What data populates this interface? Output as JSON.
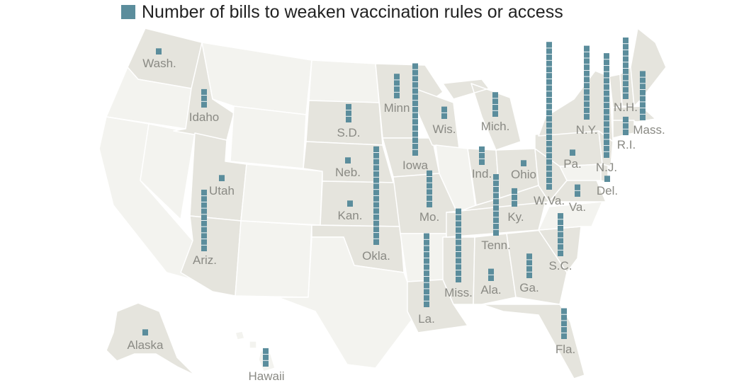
{
  "legend": {
    "label": "Number of bills to weaken vaccination rules or access"
  },
  "colors": {
    "bar": "#5b8d9c",
    "cell_gap": "#ffffff",
    "land_light": "#f3f3ef",
    "land_shaded": "#e5e4dd",
    "border": "#ffffff",
    "label": "#8a8a84"
  },
  "states": [
    {
      "id": "wa",
      "label": "Wash.",
      "count": 1
    },
    {
      "id": "id",
      "label": "Idaho",
      "count": 3
    },
    {
      "id": "mn",
      "label": "Minn",
      "count": 4
    },
    {
      "id": "ia",
      "label": "Iowa",
      "count": 15
    },
    {
      "id": "sd",
      "label": "S.D.",
      "count": 3
    },
    {
      "id": "wi",
      "label": "Wis.",
      "count": 2
    },
    {
      "id": "mi",
      "label": "Mich.",
      "count": 4
    },
    {
      "id": "wv",
      "label": "W.Va.",
      "count": 24
    },
    {
      "id": "ny",
      "label": "N.Y.",
      "count": 12
    },
    {
      "id": "nj",
      "label": "N.J.",
      "count": 17
    },
    {
      "id": "nh",
      "label": "N.H.",
      "count": 10
    },
    {
      "id": "ma",
      "label": "Mass.",
      "count": 8
    },
    {
      "id": "ri",
      "label": "R.I.",
      "count": 3
    },
    {
      "id": "ne",
      "label": "Neb.",
      "count": 1
    },
    {
      "id": "ut",
      "label": "Utah",
      "count": 1
    },
    {
      "id": "in",
      "label": "Ind.",
      "count": 3
    },
    {
      "id": "oh",
      "label": "Ohio",
      "count": 1
    },
    {
      "id": "pa",
      "label": "Pa.",
      "count": 1
    },
    {
      "id": "de",
      "label": "Del.",
      "count": 1
    },
    {
      "id": "va",
      "label": "Va.",
      "count": 2
    },
    {
      "id": "ky",
      "label": "Ky.",
      "count": 3
    },
    {
      "id": "ks",
      "label": "Kan.",
      "count": 1
    },
    {
      "id": "mo",
      "label": "Mo.",
      "count": 6
    },
    {
      "id": "ok",
      "label": "Okla.",
      "count": 16
    },
    {
      "id": "tn",
      "label": "Tenn.",
      "count": 10
    },
    {
      "id": "az",
      "label": "Ariz.",
      "count": 10
    },
    {
      "id": "sc",
      "label": "S.C.",
      "count": 7
    },
    {
      "id": "ms",
      "label": "Miss.",
      "count": 12
    },
    {
      "id": "al",
      "label": "Ala.",
      "count": 2
    },
    {
      "id": "ga",
      "label": "Ga.",
      "count": 4
    },
    {
      "id": "la",
      "label": "La.",
      "count": 12
    },
    {
      "id": "fl",
      "label": "Fla.",
      "count": 5
    },
    {
      "id": "ak",
      "label": "Alaska",
      "count": 1
    },
    {
      "id": "hi",
      "label": "Hawaii",
      "count": 3
    }
  ]
}
